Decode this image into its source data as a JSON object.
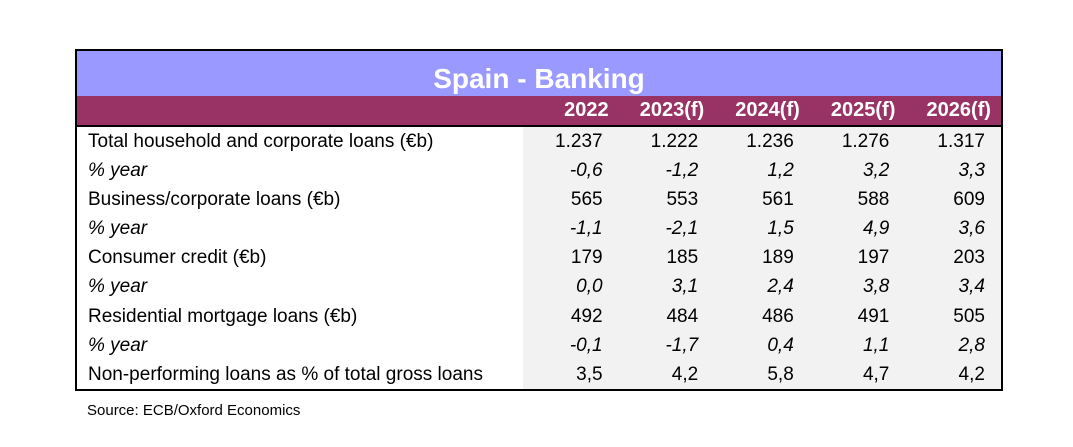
{
  "title": "Spain - Banking",
  "columns": [
    "2022",
    "2023(f)",
    "2024(f)",
    "2025(f)",
    "2026(f)"
  ],
  "rows": [
    {
      "label": "Total household and corporate loans (€b)",
      "values": [
        "1.237",
        "1.222",
        "1.236",
        "1.276",
        "1.317"
      ],
      "italic": false
    },
    {
      "label": "% year",
      "values": [
        "-0,6",
        "-1,2",
        "1,2",
        "3,2",
        "3,3"
      ],
      "italic": true
    },
    {
      "label": "Business/corporate loans (€b)",
      "values": [
        "565",
        "553",
        "561",
        "588",
        "609"
      ],
      "italic": false
    },
    {
      "label": "% year",
      "values": [
        "-1,1",
        "-2,1",
        "1,5",
        "4,9",
        "3,6"
      ],
      "italic": true
    },
    {
      "label": "Consumer credit (€b)",
      "values": [
        "179",
        "185",
        "189",
        "197",
        "203"
      ],
      "italic": false
    },
    {
      "label": "% year",
      "values": [
        "0,0",
        "3,1",
        "2,4",
        "3,8",
        "3,4"
      ],
      "italic": true
    },
    {
      "label": "Residential mortgage loans (€b)",
      "values": [
        "492",
        "484",
        "486",
        "491",
        "505"
      ],
      "italic": false
    },
    {
      "label": "% year",
      "values": [
        "-0,1",
        "-1,7",
        "0,4",
        "1,1",
        "2,8"
      ],
      "italic": true
    },
    {
      "label": "Non-performing loans as % of total gross loans",
      "values": [
        "3,5",
        "4,2",
        "5,8",
        "4,7",
        "4,2"
      ],
      "italic": false
    }
  ],
  "source": "Source: ECB/Oxford Economics",
  "colors": {
    "title_bg": "#9999ff",
    "header_bg": "#993366",
    "data_bg": "#f2f2f2"
  }
}
